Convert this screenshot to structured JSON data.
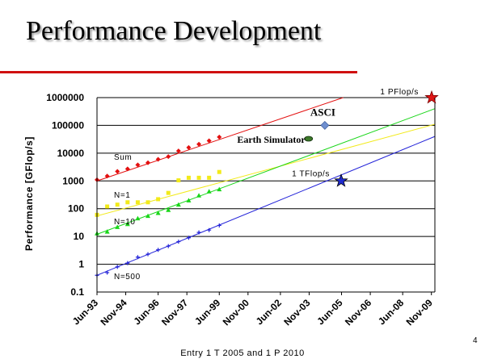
{
  "slide": {
    "title": "Performance Development",
    "caption": "Entry 1 T 2005 and 1 P 2010",
    "number": "4"
  },
  "colors": {
    "accent_rule": "#d01010",
    "sum": "#e31010",
    "n1": "#f2ea1a",
    "n10": "#19d619",
    "n500": "#2121d8",
    "asci": "#6f8fcf",
    "earth_simulator": "#3d7a2a",
    "star_red": "#e01616",
    "star_blue": "#1f2bd0"
  },
  "chart_data": {
    "type": "scatter",
    "title": "",
    "xlabel": "",
    "ylabel": "Performance [GFlop/s]",
    "y_scale": "log",
    "ylim": [
      0.1,
      1000000
    ],
    "xlim": [
      1993.42,
      2010.0
    ],
    "grid": "horizontal",
    "legend": "none",
    "y_ticks": [
      {
        "v": 1000000,
        "label": "1000000"
      },
      {
        "v": 100000,
        "label": "100000"
      },
      {
        "v": 10000,
        "label": "10000"
      },
      {
        "v": 1000,
        "label": "1000"
      },
      {
        "v": 100,
        "label": "100"
      },
      {
        "v": 10,
        "label": "10"
      },
      {
        "v": 1,
        "label": "1"
      },
      {
        "v": 0.1,
        "label": "0.1"
      }
    ],
    "x_ticks": [
      {
        "x": 1993.42,
        "label": "Jun-93"
      },
      {
        "x": 1994.83,
        "label": "Nov-94"
      },
      {
        "x": 1996.42,
        "label": "Jun-96"
      },
      {
        "x": 1997.83,
        "label": "Nov-97"
      },
      {
        "x": 1999.42,
        "label": "Jun-99"
      },
      {
        "x": 2000.83,
        "label": "Nov-00"
      },
      {
        "x": 2002.42,
        "label": "Jun-02"
      },
      {
        "x": 2003.83,
        "label": "Nov-03"
      },
      {
        "x": 2005.42,
        "label": "Jun-05"
      },
      {
        "x": 2006.83,
        "label": "Nov-06"
      },
      {
        "x": 2008.42,
        "label": "Jun-08"
      },
      {
        "x": 2009.83,
        "label": "Nov-09"
      }
    ],
    "series": [
      {
        "name": "Sum",
        "key": "sum",
        "color": "#e31010",
        "marker": "diamond",
        "x": [
          1993.42,
          1993.92,
          1994.42,
          1994.92,
          1995.42,
          1995.92,
          1996.42,
          1996.92,
          1997.42,
          1997.92,
          1998.42,
          1998.92,
          1999.42
        ],
        "y": [
          1100,
          1500,
          2200,
          2700,
          3800,
          4500,
          6000,
          7500,
          12000,
          16000,
          21000,
          28000,
          38000
        ],
        "trend": {
          "x": [
            1993.42,
            2005.5
          ],
          "y": [
            1000,
            1000000
          ]
        }
      },
      {
        "name": "N=1",
        "key": "n1",
        "color": "#f2ea1a",
        "marker": "square",
        "x": [
          1993.42,
          1993.92,
          1994.42,
          1994.92,
          1995.42,
          1995.92,
          1996.42,
          1996.92,
          1997.42,
          1997.92,
          1998.42,
          1998.92,
          1999.42
        ],
        "y": [
          60,
          120,
          140,
          170,
          170,
          170,
          220,
          370,
          1050,
          1300,
          1300,
          1300,
          2100
        ],
        "trend": {
          "x": [
            1993.42,
            2010.0
          ],
          "y": [
            55,
            110000
          ]
        }
      },
      {
        "name": "N=10",
        "key": "n10",
        "color": "#19d619",
        "marker": "triangle",
        "x": [
          1993.42,
          1993.92,
          1994.42,
          1994.92,
          1995.42,
          1995.92,
          1996.42,
          1996.92,
          1997.42,
          1997.92,
          1998.42,
          1998.92,
          1999.42
        ],
        "y": [
          13,
          15,
          22,
          28,
          45,
          55,
          70,
          90,
          140,
          200,
          300,
          420,
          500
        ],
        "trend": {
          "x": [
            1993.42,
            2010.0
          ],
          "y": [
            12,
            400000
          ]
        }
      },
      {
        "name": "N=500",
        "key": "n500",
        "color": "#2121d8",
        "marker": "plus",
        "x": [
          1993.42,
          1993.92,
          1994.42,
          1994.92,
          1995.42,
          1995.92,
          1996.42,
          1996.92,
          1997.42,
          1997.92,
          1998.42,
          1998.92,
          1999.42
        ],
        "y": [
          0.4,
          0.5,
          0.8,
          1.1,
          1.8,
          2.3,
          3.3,
          4.5,
          6.5,
          9,
          14,
          17,
          25
        ],
        "trend": {
          "x": [
            1993.42,
            2010.0
          ],
          "y": [
            0.4,
            40000
          ]
        }
      }
    ],
    "annotations": [
      {
        "key": "asci",
        "label": "ASCI",
        "x": 2004.6,
        "y": 100000,
        "marker": "diamond",
        "color": "#6f8fcf"
      },
      {
        "key": "earth_simulator",
        "label": "Earth Simulator",
        "x": 2003.8,
        "y": 33000,
        "marker": "ellipse",
        "color": "#3d7a2a"
      },
      {
        "key": "one_pflops",
        "label": "1 PFlop/s",
        "x": 2010.0,
        "y": 1000000,
        "marker": "star",
        "color": "#e01616"
      },
      {
        "key": "one_tflops",
        "label": "1 TFlop/s",
        "x": 2005.4,
        "y": 1000,
        "marker": "star",
        "color": "#1f2bd0"
      }
    ]
  }
}
